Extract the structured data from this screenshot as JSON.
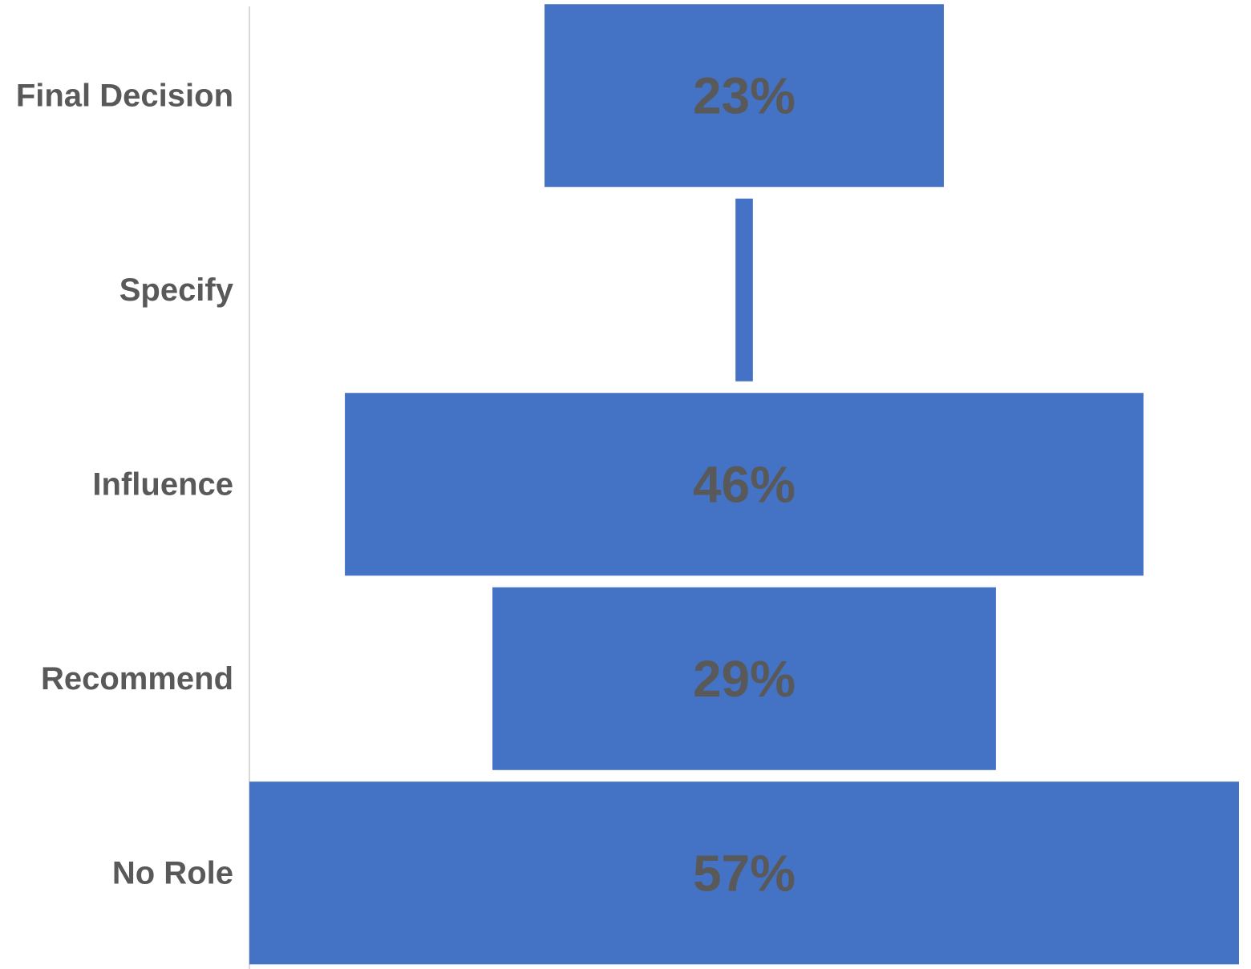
{
  "chart_data": {
    "type": "bar",
    "orientation": "horizontal",
    "style": "funnel (bars centered)",
    "categories": [
      "Final Decision",
      "Specify",
      "Influence",
      "Recommend",
      "No Role"
    ],
    "values": [
      23,
      1,
      46,
      29,
      57
    ],
    "data_labels": [
      "23%",
      "",
      "46%",
      "29%",
      "57%"
    ],
    "value_unit": "%",
    "title": "",
    "xlabel": "",
    "ylabel": "",
    "legend": "none",
    "grid": false,
    "colors": {
      "bar": "#4472C4",
      "label_text": "#595959",
      "axis_line": "#D9D9D9"
    }
  }
}
